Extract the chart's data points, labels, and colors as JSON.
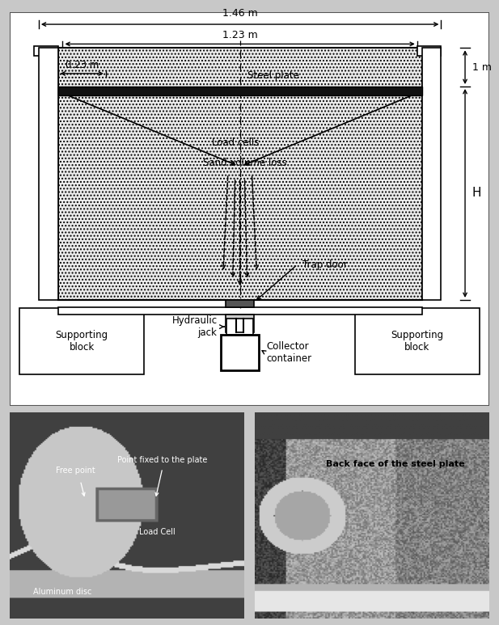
{
  "bg_color": "#c8c8c8",
  "diagram_bg": "#ffffff",
  "sand_color": "#e8e8e8",
  "dim_146": "1.46 m",
  "dim_123": "1.23 m",
  "dim_023": "0.23 m",
  "dim_1m": "1 m",
  "dim_H": "H",
  "labels": {
    "steel_plate": "Steel plate",
    "load_cells": "Load cells",
    "sand_volume": "Sand volume loss",
    "trap_door": "Trap door",
    "supporting_block_l": "Supporting\nblock",
    "supporting_block_r": "Supporting\nblock",
    "hydraulic_jack": "Hydraulic\njack",
    "collector": "Collector\ncontainer"
  },
  "photo1_labels": {
    "point_fixed": "Point fixed to the plate",
    "free_point": "Free point",
    "load_cell": "Load Cell",
    "aluminum_disc": "Aluminum disc"
  },
  "photo2_labels": {
    "back_face": "Back face of the steel plate"
  }
}
